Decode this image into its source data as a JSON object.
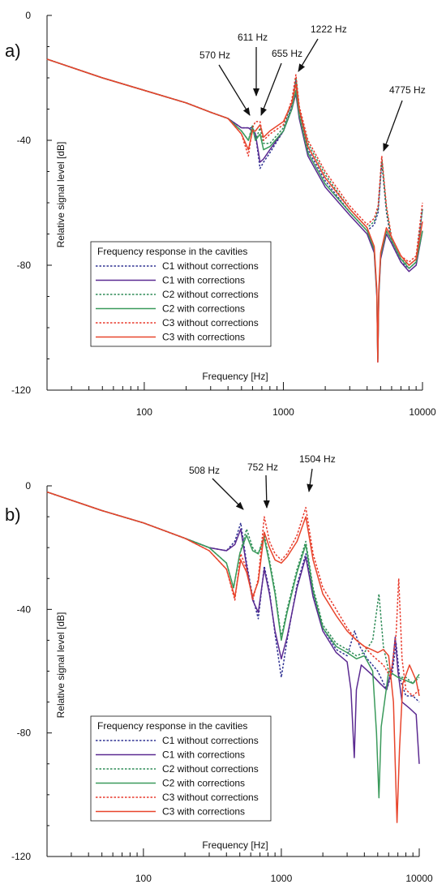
{
  "chart_data": [
    {
      "type": "line",
      "panel_label": "a)",
      "xlabel": "Frequency [Hz]",
      "ylabel": "Relative signal level [dB]",
      "xscale": "log",
      "xlim": [
        20,
        10000
      ],
      "ylim": [
        -120,
        0
      ],
      "yticks": [
        0,
        -40,
        -80,
        -120
      ],
      "xticks": [
        100,
        1000,
        10000
      ],
      "xtick_labels": [
        "100",
        "1000",
        "10000"
      ],
      "ytick_labels": [
        "0",
        "-40",
        "-80",
        "-120"
      ],
      "grid": false,
      "legend": {
        "title": "Frequency response in the cavities",
        "placement": "lower-left",
        "entries": [
          "C1 without corrections",
          "C1 with corrections",
          "C2 without corrections",
          "C2 with corrections",
          "C3 without corrections",
          "C3 with corrections"
        ]
      },
      "annotations": [
        {
          "text": "570 Hz",
          "x": 600,
          "y": -32
        },
        {
          "text": "611 Hz",
          "x": 640,
          "y": -26
        },
        {
          "text": "655 Hz",
          "x": 690,
          "y": -32
        },
        {
          "text": "1222 Hz",
          "x": 1260,
          "y": -18
        },
        {
          "text": "4775 Hz",
          "x": 5050,
          "y": -44
        }
      ],
      "series": [
        {
          "name": "C1 without corrections",
          "color": "#2e3192",
          "style": "dotted",
          "x": [
            20,
            50,
            100,
            200,
            300,
            400,
            500,
            560,
            600,
            630,
            680,
            720,
            800,
            1000,
            1150,
            1230,
            1300,
            1500,
            2000,
            3000,
            4000,
            4500,
            4800,
            5100,
            5500,
            6000,
            7000,
            8000,
            9000,
            10000
          ],
          "y": [
            -14,
            -20,
            -24,
            -28,
            -31,
            -33,
            -36,
            -36,
            -36,
            -38,
            -49,
            -47,
            -44,
            -37,
            -29,
            -21,
            -31,
            -43,
            -53,
            -63,
            -69,
            -67,
            -63,
            -47,
            -63,
            -73,
            -79,
            -81,
            -79,
            -62
          ]
        },
        {
          "name": "C1 with corrections",
          "color": "#5b2a91",
          "style": "solid",
          "x": [
            20,
            50,
            100,
            200,
            300,
            400,
            500,
            560,
            600,
            630,
            680,
            720,
            800,
            1000,
            1150,
            1230,
            1300,
            1500,
            2000,
            3000,
            4000,
            4500,
            4700,
            4775,
            4850,
            5000,
            5500,
            6000,
            7000,
            8000,
            9000,
            10000
          ],
          "y": [
            -14,
            -20,
            -24,
            -28,
            -31,
            -33,
            -36,
            -36,
            -37,
            -38,
            -47,
            -46,
            -43,
            -37,
            -30,
            -25,
            -33,
            -45,
            -55,
            -64,
            -70,
            -76,
            -90,
            -111,
            -90,
            -78,
            -70,
            -73,
            -79,
            -82,
            -80,
            -69
          ]
        },
        {
          "name": "C2 without corrections",
          "color": "#2e8b57",
          "style": "dotted",
          "x": [
            20,
            50,
            100,
            200,
            300,
            400,
            500,
            560,
            600,
            630,
            680,
            720,
            800,
            1000,
            1150,
            1230,
            1300,
            1500,
            2000,
            3000,
            4000,
            4500,
            4800,
            5100,
            5500,
            6000,
            7000,
            8000,
            9000,
            10000
          ],
          "y": [
            -14,
            -20,
            -24,
            -28,
            -31,
            -33,
            -37,
            -40,
            -35,
            -40,
            -36,
            -41,
            -41,
            -36,
            -28,
            -20,
            -30,
            -41,
            -51,
            -62,
            -68,
            -66,
            -62,
            -46,
            -62,
            -72,
            -78,
            -80,
            -78,
            -62
          ]
        },
        {
          "name": "C2 with corrections",
          "color": "#3a9a5b",
          "style": "solid",
          "x": [
            20,
            50,
            100,
            200,
            300,
            400,
            500,
            560,
            600,
            630,
            680,
            720,
            800,
            1000,
            1150,
            1230,
            1300,
            1500,
            2000,
            3000,
            4000,
            4500,
            4700,
            4775,
            4850,
            5000,
            5500,
            6000,
            7000,
            8000,
            9000,
            10000
          ],
          "y": [
            -14,
            -20,
            -24,
            -28,
            -31,
            -33,
            -37,
            -40,
            -36,
            -40,
            -38,
            -43,
            -42,
            -37,
            -30,
            -24,
            -32,
            -44,
            -54,
            -63,
            -69,
            -75,
            -89,
            -110,
            -89,
            -77,
            -69,
            -72,
            -78,
            -81,
            -79,
            -69
          ]
        },
        {
          "name": "C3 without corrections",
          "color": "#e8392b",
          "style": "dotted",
          "x": [
            20,
            50,
            100,
            200,
            300,
            400,
            500,
            560,
            600,
            630,
            680,
            720,
            800,
            1000,
            1150,
            1230,
            1300,
            1500,
            2000,
            3000,
            4000,
            4500,
            4800,
            5100,
            5500,
            6000,
            7000,
            8000,
            9000,
            10000
          ],
          "y": [
            -14,
            -20,
            -24,
            -28,
            -31,
            -33,
            -38,
            -45,
            -36,
            -34,
            -34,
            -40,
            -38,
            -35,
            -27,
            -19,
            -29,
            -40,
            -50,
            -61,
            -67,
            -65,
            -61,
            -45,
            -61,
            -71,
            -77,
            -79,
            -77,
            -60
          ]
        },
        {
          "name": "C3 with corrections",
          "color": "#e8452c",
          "style": "solid",
          "x": [
            20,
            50,
            100,
            200,
            300,
            400,
            500,
            560,
            600,
            630,
            680,
            720,
            800,
            1000,
            1150,
            1230,
            1300,
            1500,
            2000,
            3000,
            4000,
            4500,
            4700,
            4775,
            4850,
            5000,
            5500,
            6000,
            7000,
            8000,
            9000,
            10000
          ],
          "y": [
            -14,
            -20,
            -24,
            -28,
            -31,
            -33,
            -38,
            -43,
            -37,
            -37,
            -35,
            -39,
            -37,
            -34,
            -28,
            -22,
            -30,
            -42,
            -52,
            -62,
            -68,
            -74,
            -88,
            -111,
            -88,
            -76,
            -68,
            -71,
            -77,
            -80,
            -78,
            -66
          ]
        }
      ]
    },
    {
      "type": "line",
      "panel_label": "b)",
      "xlabel": "Frequency [Hz]",
      "ylabel": "Relative signal level [dB]",
      "xscale": "log",
      "xlim": [
        20,
        10000
      ],
      "ylim": [
        -120,
        0
      ],
      "yticks": [
        0,
        -40,
        -80,
        -120
      ],
      "xticks": [
        100,
        1000,
        10000
      ],
      "xtick_labels": [
        "100",
        "1000",
        "10000"
      ],
      "ytick_labels": [
        "0",
        "-40",
        "-80",
        "-120"
      ],
      "grid": false,
      "legend": {
        "title": "Frequency response in the cavities",
        "placement": "lower-left",
        "entries": [
          "C1 without corrections",
          "C1 with corrections",
          "C2 without corrections",
          "C2 with corrections",
          "C3 without corrections",
          "C3 with corrections"
        ]
      },
      "annotations": [
        {
          "text": "508 Hz",
          "x": 508,
          "y": -9
        },
        {
          "text": "752 Hz",
          "x": 800,
          "y": -6
        },
        {
          "text": "1504 Hz",
          "x": 1600,
          "y": -2
        }
      ],
      "series": [
        {
          "name": "C1 without corrections",
          "color": "#2e3192",
          "style": "dotted",
          "x": [
            20,
            50,
            100,
            200,
            300,
            400,
            460,
            508,
            560,
            620,
            680,
            752,
            820,
            900,
            1000,
            1100,
            1300,
            1504,
            1700,
            2000,
            2500,
            3000,
            3400,
            3700,
            4200,
            5000,
            5800,
            6400,
            6800,
            7200,
            8000,
            9000,
            10000
          ],
          "y": [
            -2,
            -8,
            -12,
            -17,
            -20,
            -21,
            -18,
            -12,
            -25,
            -36,
            -43,
            -26,
            -34,
            -48,
            -62,
            -50,
            -32,
            -22,
            -35,
            -46,
            -53,
            -55,
            -47,
            -52,
            -56,
            -60,
            -66,
            -60,
            -51,
            -62,
            -68,
            -68,
            -70
          ]
        },
        {
          "name": "C1 with corrections",
          "color": "#5b2a91",
          "style": "solid",
          "x": [
            20,
            50,
            100,
            200,
            300,
            400,
            460,
            508,
            560,
            620,
            680,
            752,
            820,
            900,
            1000,
            1100,
            1300,
            1504,
            1700,
            2000,
            2500,
            3000,
            3200,
            3380,
            3500,
            3800,
            4500,
            5200,
            5800,
            6400,
            6700,
            7000,
            7500,
            8500,
            9500,
            10000
          ],
          "y": [
            -2,
            -8,
            -12,
            -17,
            -20,
            -21,
            -19,
            -14,
            -26,
            -37,
            -41,
            -27,
            -35,
            -47,
            -56,
            -49,
            -33,
            -23,
            -36,
            -47,
            -54,
            -57,
            -66,
            -88,
            -66,
            -58,
            -61,
            -64,
            -66,
            -58,
            -49,
            -60,
            -70,
            -72,
            -74,
            -90
          ]
        },
        {
          "name": "C2 without corrections",
          "color": "#2e8b57",
          "style": "dotted",
          "x": [
            20,
            50,
            100,
            200,
            300,
            400,
            450,
            500,
            560,
            620,
            680,
            752,
            820,
            900,
            1000,
            1100,
            1300,
            1504,
            1700,
            2000,
            2500,
            3000,
            3500,
            4000,
            4600,
            5100,
            5500,
            6000,
            7000,
            8000,
            9000,
            10000
          ],
          "y": [
            -2,
            -8,
            -12,
            -17,
            -20,
            -25,
            -33,
            -22,
            -14,
            -20,
            -22,
            -16,
            -24,
            -34,
            -49,
            -40,
            -27,
            -18,
            -33,
            -45,
            -51,
            -53,
            -55,
            -54,
            -50,
            -35,
            -52,
            -60,
            -62,
            -62,
            -64,
            -62
          ]
        },
        {
          "name": "C2 with corrections",
          "color": "#3a9a5b",
          "style": "solid",
          "x": [
            20,
            50,
            100,
            200,
            300,
            400,
            450,
            500,
            560,
            620,
            680,
            752,
            820,
            900,
            1000,
            1100,
            1300,
            1504,
            1700,
            2000,
            2500,
            3000,
            3500,
            4000,
            4600,
            4900,
            5100,
            5300,
            6000,
            7000,
            8000,
            9000,
            10000
          ],
          "y": [
            -2,
            -8,
            -12,
            -17,
            -20,
            -25,
            -33,
            -22,
            -16,
            -21,
            -22,
            -17,
            -25,
            -35,
            -50,
            -41,
            -28,
            -19,
            -34,
            -46,
            -52,
            -54,
            -56,
            -55,
            -60,
            -80,
            -101,
            -78,
            -60,
            -62,
            -63,
            -64,
            -61
          ]
        },
        {
          "name": "C3 without corrections",
          "color": "#e8392b",
          "style": "dotted",
          "x": [
            20,
            50,
            100,
            200,
            300,
            400,
            460,
            508,
            560,
            620,
            680,
            752,
            820,
            900,
            1000,
            1100,
            1300,
            1504,
            1700,
            2000,
            2500,
            3000,
            3500,
            4000,
            4600,
            5500,
            6200,
            6800,
            7100,
            7500,
            8000,
            9000,
            10000
          ],
          "y": [
            -2,
            -8,
            -12,
            -17,
            -21,
            -27,
            -37,
            -22,
            -27,
            -37,
            -30,
            -10,
            -18,
            -22,
            -24,
            -22,
            -16,
            -7,
            -22,
            -33,
            -40,
            -46,
            -50,
            -52,
            -55,
            -58,
            -62,
            -48,
            -30,
            -56,
            -66,
            -68,
            -66
          ]
        },
        {
          "name": "C3 with corrections",
          "color": "#e8452c",
          "style": "solid",
          "x": [
            20,
            50,
            100,
            200,
            300,
            400,
            460,
            508,
            560,
            620,
            680,
            752,
            820,
            900,
            1000,
            1100,
            1300,
            1504,
            1700,
            2000,
            2500,
            3000,
            3500,
            4000,
            4500,
            5000,
            5500,
            6000,
            6500,
            6700,
            6900,
            7200,
            7600,
            8500,
            9500,
            10000
          ],
          "y": [
            -2,
            -8,
            -12,
            -17,
            -21,
            -27,
            -36,
            -24,
            -28,
            -36,
            -31,
            -15,
            -20,
            -24,
            -25,
            -23,
            -18,
            -10,
            -24,
            -35,
            -42,
            -47,
            -50,
            -52,
            -53,
            -54,
            -53,
            -55,
            -70,
            -90,
            -109,
            -85,
            -64,
            -58,
            -63,
            -68
          ]
        }
      ]
    }
  ]
}
